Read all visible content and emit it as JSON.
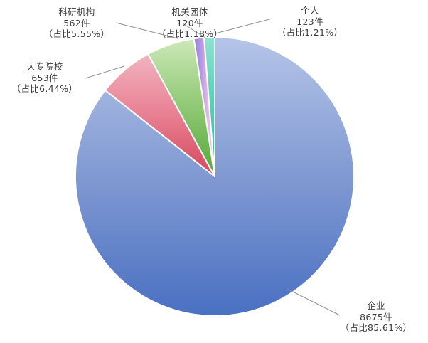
{
  "chart_data": {
    "type": "pie",
    "title": "",
    "legend_position": "none",
    "start_angle_deg": 90,
    "direction": "clockwise",
    "border_color": "#ffffff",
    "leader_line_color": "#909090",
    "text_color": "#3c3c3c",
    "background_color": "#ffffff",
    "slices": [
      {
        "id": "qiye",
        "category": "企业",
        "value": 8675,
        "percent": 85.61,
        "count_text": "8675件",
        "percent_text": "（占比85.61%）",
        "gradient": "vertical",
        "colors": [
          "#b5c5e8",
          "#8099d2",
          "#4a70c2"
        ]
      },
      {
        "id": "dazhuan",
        "category": "大专院校",
        "value": 653,
        "percent": 6.44,
        "count_text": "653件",
        "percent_text": "（占比6.44%）",
        "gradient": "vertical",
        "colors": [
          "#f0b4c0",
          "#e87f92",
          "#d4475c"
        ]
      },
      {
        "id": "keyan",
        "category": "科研机构",
        "value": 562,
        "percent": 5.55,
        "count_text": "562件",
        "percent_text": "（占比5.55%）",
        "gradient": "vertical",
        "colors": [
          "#cce8b8",
          "#8fc873",
          "#55a83a"
        ]
      },
      {
        "id": "jiguan",
        "category": "机关团体",
        "value": 120,
        "percent": 1.18,
        "count_text": "120件",
        "percent_text": "（占比1.18%）",
        "gradient": "horizontal",
        "colors": [
          "#9b80da",
          "#b195e4",
          "#e2bce2",
          "#eec9e8"
        ]
      },
      {
        "id": "geren",
        "category": "个人",
        "value": 123,
        "percent": 1.21,
        "count_text": "123件",
        "percent_text": "（占比1.21%）",
        "gradient": "vertical",
        "colors": [
          "#8ee2d0",
          "#56cdb9",
          "#2eb9a7"
        ]
      }
    ]
  }
}
